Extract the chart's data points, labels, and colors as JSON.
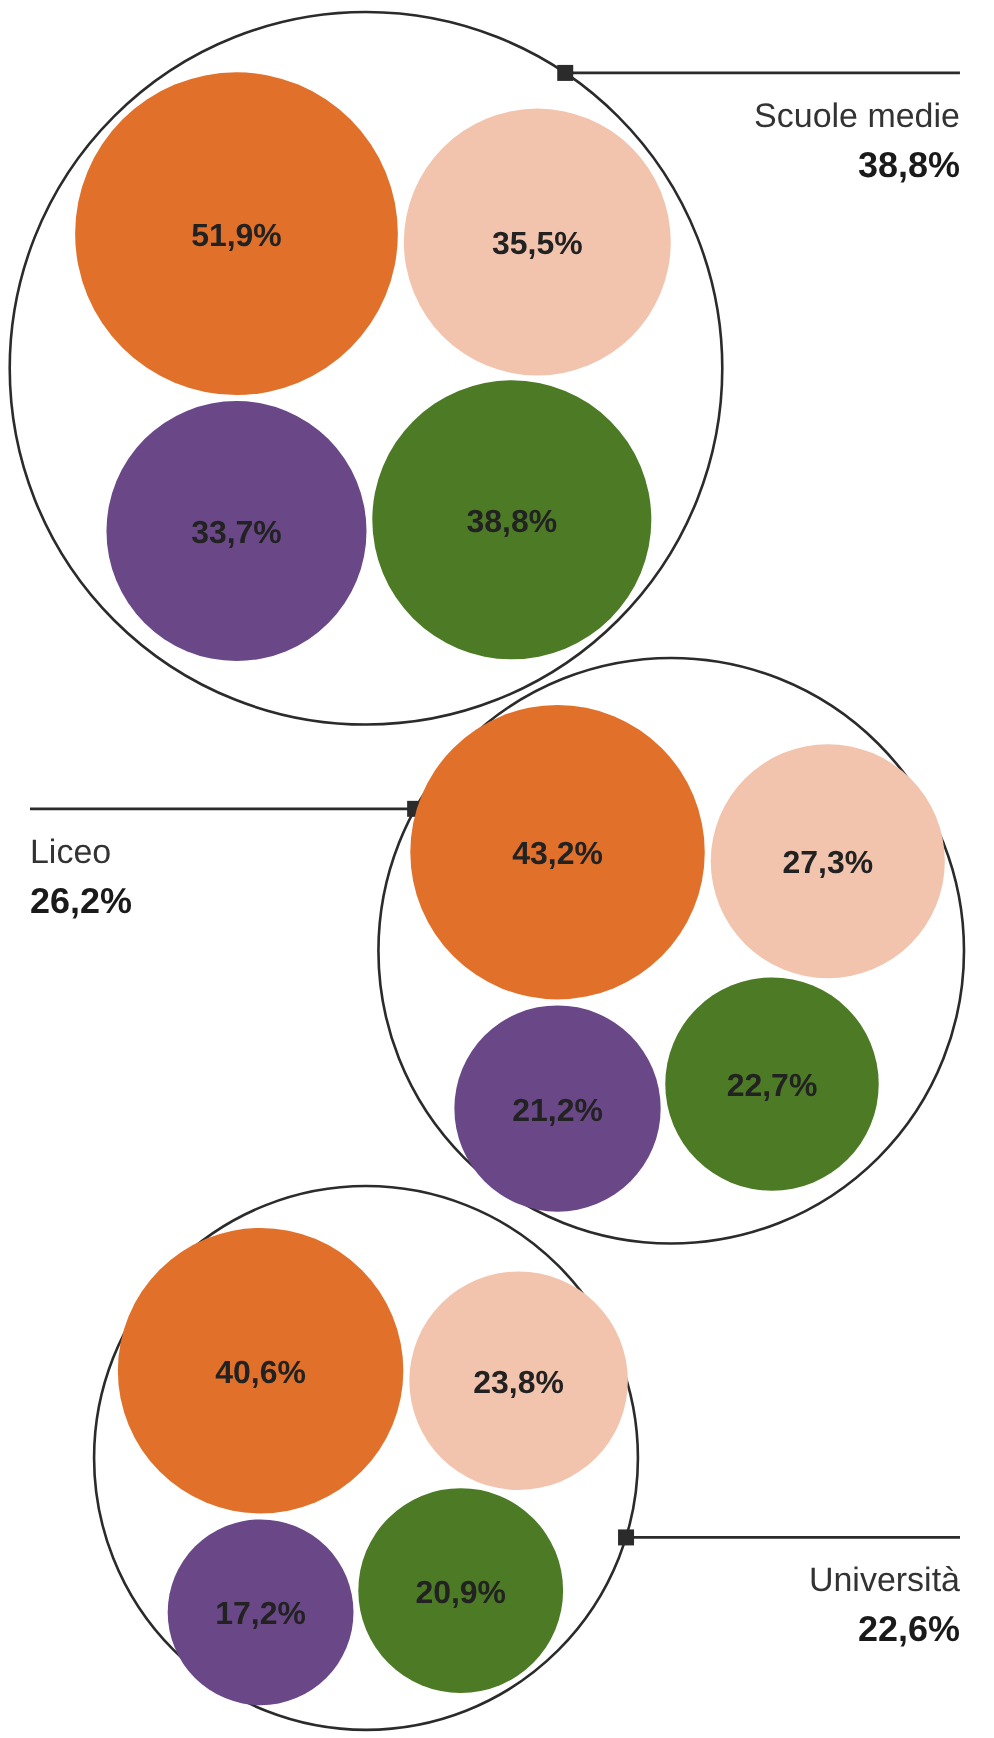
{
  "chart_data": [
    {
      "type": "other",
      "categories": [
        "Scuole medie"
      ],
      "series": [
        {
          "color": "#2b2b2b",
          "values": [
            38.8
          ],
          "value_labels": [
            "38,8%"
          ]
        },
        {
          "color": "#e0702a",
          "values": [
            51.9
          ],
          "value_labels": [
            "51,9%"
          ]
        },
        {
          "color": "#f2c4ad",
          "values": [
            35.5
          ],
          "value_labels": [
            "35,5%"
          ]
        },
        {
          "color": "#6a4888",
          "values": [
            33.7
          ],
          "value_labels": [
            "33,7%"
          ]
        },
        {
          "color": "#4d7a25",
          "values": [
            38.8
          ],
          "value_labels": [
            "38,8%"
          ]
        }
      ]
    },
    {
      "type": "other",
      "categories": [
        "Liceo"
      ],
      "series": [
        {
          "color": "#2b2b2b",
          "values": [
            26.2
          ],
          "value_labels": [
            "26,2%"
          ]
        },
        {
          "color": "#e0702a",
          "values": [
            43.2
          ],
          "value_labels": [
            "43,2%"
          ]
        },
        {
          "color": "#f2c4ad",
          "values": [
            27.3
          ],
          "value_labels": [
            "27,3%"
          ]
        },
        {
          "color": "#6a4888",
          "values": [
            21.2
          ],
          "value_labels": [
            "21,2%"
          ]
        },
        {
          "color": "#4d7a25",
          "values": [
            22.7
          ],
          "value_labels": [
            "22,7%"
          ]
        }
      ]
    },
    {
      "type": "other",
      "categories": [
        "Università"
      ],
      "series": [
        {
          "color": "#2b2b2b",
          "values": [
            22.6
          ],
          "value_labels": [
            "22,6%"
          ]
        },
        {
          "color": "#e0702a",
          "values": [
            40.6
          ],
          "value_labels": [
            "40,6%"
          ]
        },
        {
          "color": "#f2c4ad",
          "values": [
            23.8
          ],
          "value_labels": [
            "23,8%"
          ]
        },
        {
          "color": "#6a4888",
          "values": [
            17.2
          ],
          "value_labels": [
            "17,2%"
          ]
        },
        {
          "color": "#4d7a25",
          "values": [
            20.9
          ],
          "value_labels": [
            "20,9%"
          ]
        }
      ]
    }
  ]
}
